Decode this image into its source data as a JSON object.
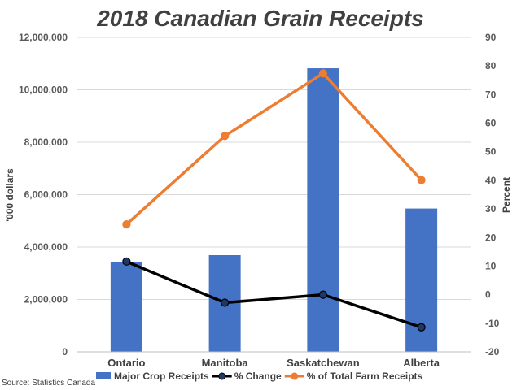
{
  "chart_data": {
    "type": "bar+line",
    "title": "2018 Canadian Grain Receipts",
    "source": "Source: Statistics Canada",
    "categories": [
      "Ontario",
      "Manitoba",
      "Saskatchewan",
      "Alberta"
    ],
    "y_left": {
      "label": "'000 dollars",
      "min": 0,
      "max": 12000000,
      "step": 2000000,
      "tick_labels": [
        "0",
        "2,000,000",
        "4,000,000",
        "6,000,000",
        "8,000,000",
        "10,000,000",
        "12,000,000"
      ]
    },
    "y_right": {
      "label": "Percent",
      "min": -20,
      "max": 90,
      "step": 10,
      "tick_labels": [
        "-20",
        "-10",
        "0",
        "10",
        "20",
        "30",
        "40",
        "50",
        "60",
        "70",
        "80",
        "90"
      ]
    },
    "series": [
      {
        "name": "Major Crop Receipts",
        "type": "bar",
        "axis": "left",
        "color": "#4472c4",
        "values": [
          3430000,
          3690000,
          10820000,
          5470000
        ]
      },
      {
        "name": "% Change",
        "type": "line",
        "axis": "right",
        "color": "#000000",
        "marker_fill": "#1f3864",
        "values": [
          11.6,
          -2.8,
          0,
          -11.4
        ]
      },
      {
        "name": "% of Total Farm Receipts",
        "type": "line",
        "axis": "right",
        "color": "#ed7d31",
        "values": [
          24.6,
          55.5,
          77.4,
          40.1
        ]
      }
    ],
    "grid": true,
    "legend_position": "bottom"
  }
}
